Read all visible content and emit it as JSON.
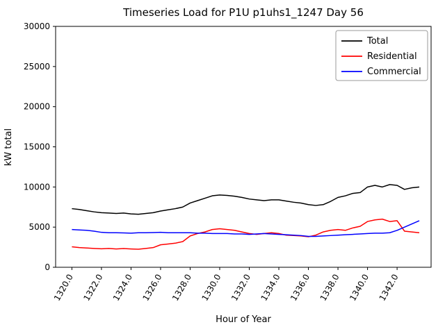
{
  "chart_data": {
    "type": "line",
    "title": "Timeseries Load for P1U p1uhs1_1247  Day 56",
    "xlabel": "Hour of Year",
    "ylabel": "kW total",
    "xlim": [
      1318.9,
      1344.3
    ],
    "ylim": [
      0,
      30000
    ],
    "yticks": [
      0,
      5000,
      10000,
      15000,
      20000,
      25000,
      30000
    ],
    "xticks": [
      1320,
      1322,
      1324,
      1326,
      1328,
      1330,
      1332,
      1334,
      1336,
      1338,
      1340,
      1342
    ],
    "xtick_labels": [
      "1320.0",
      "1322.0",
      "1324.0",
      "1326.0",
      "1328.0",
      "1330.0",
      "1332.0",
      "1334.0",
      "1336.0",
      "1338.0",
      "1340.0",
      "1342.0"
    ],
    "grid": false,
    "legend_position": "upper right",
    "x": [
      1320,
      1320.5,
      1321,
      1321.5,
      1322,
      1322.5,
      1323,
      1323.5,
      1324,
      1324.5,
      1325,
      1325.5,
      1326,
      1326.5,
      1327,
      1327.5,
      1328,
      1328.5,
      1329,
      1329.5,
      1330,
      1330.5,
      1331,
      1331.5,
      1332,
      1332.5,
      1333,
      1333.5,
      1334,
      1334.5,
      1335,
      1335.5,
      1336,
      1336.5,
      1337,
      1337.5,
      1338,
      1338.5,
      1339,
      1339.5,
      1340,
      1340.5,
      1341,
      1341.5,
      1342,
      1342.5,
      1343,
      1343.5
    ],
    "series": [
      {
        "name": "Total",
        "color": "#000000",
        "values": [
          7300,
          7200,
          7050,
          6900,
          6800,
          6750,
          6700,
          6750,
          6650,
          6600,
          6700,
          6800,
          7000,
          7150,
          7300,
          7500,
          8000,
          8300,
          8600,
          8900,
          9000,
          8950,
          8850,
          8700,
          8500,
          8400,
          8300,
          8400,
          8400,
          8250,
          8100,
          8000,
          7800,
          7700,
          7800,
          8200,
          8700,
          8900,
          9200,
          9300,
          10000,
          10200,
          10000,
          10300,
          10200,
          9700,
          9900,
          10000
        ]
      },
      {
        "name": "Residential",
        "color": "#ff0000",
        "values": [
          2550,
          2450,
          2400,
          2350,
          2300,
          2350,
          2280,
          2330,
          2280,
          2250,
          2350,
          2450,
          2800,
          2900,
          3000,
          3200,
          3900,
          4200,
          4400,
          4700,
          4800,
          4700,
          4600,
          4400,
          4200,
          4100,
          4200,
          4300,
          4200,
          4000,
          3950,
          3900,
          3800,
          4000,
          4400,
          4600,
          4700,
          4600,
          4900,
          5100,
          5700,
          5900,
          6000,
          5700,
          5800,
          4500,
          4400,
          4300
        ]
      },
      {
        "name": "Commercial",
        "color": "#0000ff",
        "values": [
          4700,
          4650,
          4600,
          4500,
          4350,
          4300,
          4300,
          4280,
          4250,
          4300,
          4300,
          4320,
          4350,
          4300,
          4300,
          4300,
          4300,
          4250,
          4250,
          4200,
          4200,
          4200,
          4150,
          4150,
          4100,
          4150,
          4200,
          4150,
          4100,
          4050,
          4000,
          3950,
          3850,
          3850,
          3900,
          3950,
          4000,
          4050,
          4100,
          4150,
          4200,
          4250,
          4250,
          4300,
          4600,
          5000,
          5400,
          5800
        ]
      }
    ]
  }
}
